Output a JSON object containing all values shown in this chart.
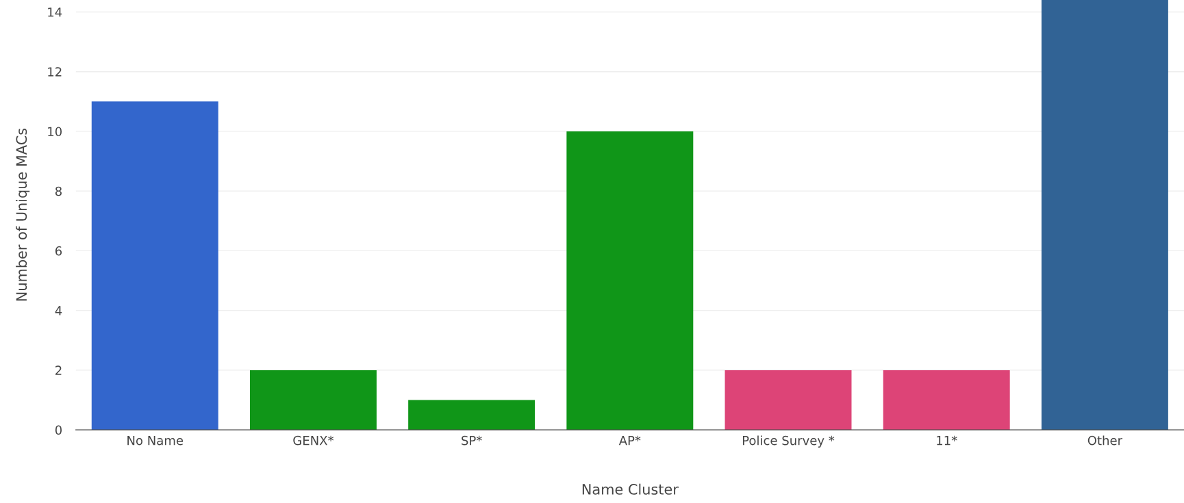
{
  "chart_data": {
    "type": "bar",
    "xlabel": "Name Cluster",
    "ylabel": "Number of Unique MACs",
    "categories": [
      "No Name",
      "GENX*",
      "SP*",
      "AP*",
      "Police Survey *",
      "11*",
      "Other"
    ],
    "values": [
      11,
      2,
      1,
      10,
      2,
      2,
      14.4
    ],
    "colors": [
      "#3366cc",
      "#109618",
      "#109618",
      "#109618",
      "#dd4477",
      "#dd4477",
      "#316395"
    ],
    "ylim": [
      0,
      14.4
    ],
    "yticks": [
      0,
      2,
      4,
      6,
      8,
      10,
      12,
      14
    ],
    "grid": "y",
    "legend": false
  }
}
